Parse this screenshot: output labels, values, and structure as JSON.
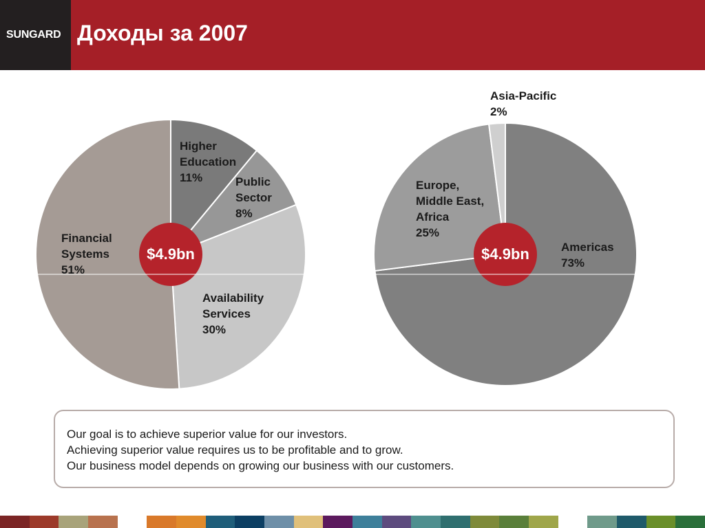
{
  "header": {
    "logo": "SUNGARD",
    "title": "Доходы за 2007",
    "bg_color": "#a51f27",
    "logo_bg_color": "#231f20"
  },
  "chart_data": [
    {
      "type": "pie",
      "center_label": "$4.9bn",
      "slices": [
        {
          "label": "Higher Education",
          "display_label": [
            "Higher",
            "Education"
          ],
          "value": 11,
          "value_label": "11%",
          "color": "#7a7a7a"
        },
        {
          "label": "Public Sector",
          "display_label": [
            "Public",
            "Sector"
          ],
          "value": 8,
          "value_label": "8%",
          "color": "#979797"
        },
        {
          "label": "Availability Services",
          "display_label": [
            "Availability",
            "Services"
          ],
          "value": 30,
          "value_label": "30%",
          "color": "#c7c7c7"
        },
        {
          "label": "Financial Systems",
          "display_label": [
            "Financial",
            "Systems"
          ],
          "value": 51,
          "value_label": "51%",
          "color": "#a59b95"
        }
      ]
    },
    {
      "type": "pie",
      "center_label": "$4.9bn",
      "slices": [
        {
          "label": "Americas",
          "display_label": [
            "Americas"
          ],
          "value": 73,
          "value_label": "73%",
          "color": "#808080"
        },
        {
          "label": "Europe, Middle East, Africa",
          "display_label": [
            "Europe,",
            "Middle East,",
            "Africa"
          ],
          "value": 25,
          "value_label": "25%",
          "color": "#9c9c9c"
        },
        {
          "label": "Asia-Pacific",
          "display_label": [
            "Asia-Pacific"
          ],
          "value": 2,
          "value_label": "2%",
          "color": "#cfcfcf"
        }
      ]
    }
  ],
  "center_circle_color": "#b5232b",
  "statement": {
    "lines": [
      "Our goal is to achieve superior value for our investors.",
      "Achieving superior value requires us to be profitable and to grow.",
      "Our business model depends on growing our business with our customers."
    ]
  },
  "footer_colors": [
    "#7b2525",
    "#9c3a2a",
    "#a8a37a",
    "#b8724e",
    "#ffffff",
    "#d9792a",
    "#e08a2b",
    "#1f5e7a",
    "#0c3f63",
    "#6e8fa8",
    "#e0c07a",
    "#5c1a5e",
    "#3e7f9a",
    "#5d4b7e",
    "#4f8f8f",
    "#2f6f6f",
    "#7e8a3a",
    "#5a7f3a",
    "#9fa64a",
    "#ffffff",
    "#6f9a8a",
    "#1f5a6a",
    "#6a8f2a",
    "#2a6f3a"
  ]
}
